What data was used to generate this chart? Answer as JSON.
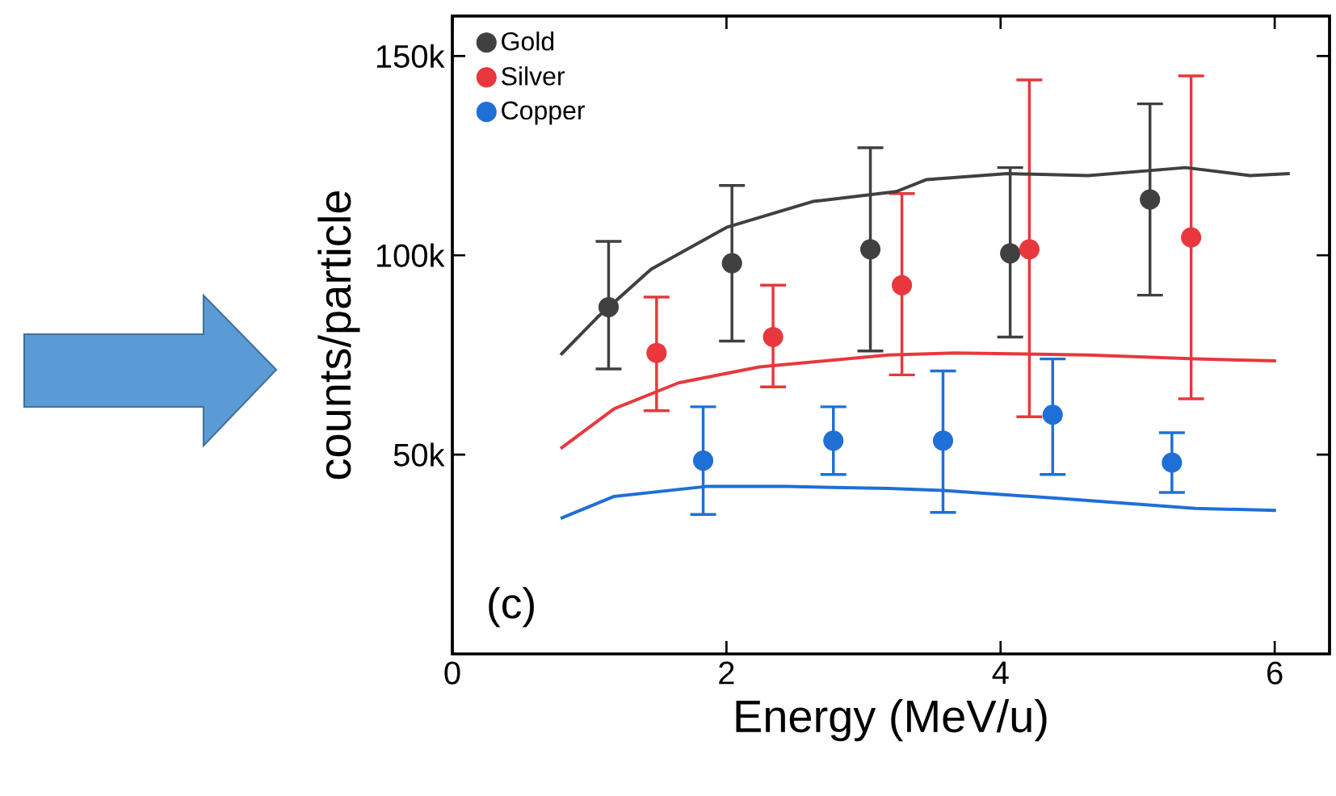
{
  "chart_data": {
    "type": "scatter",
    "xlabel": "Energy (MeV/u)",
    "ylabel": "counts/particle",
    "xlim": [
      0,
      6.4
    ],
    "xticks": [
      0,
      2,
      4,
      6
    ],
    "ylim": [
      0,
      160000
    ],
    "yticks": [
      {
        "value": 50000,
        "label": "50k"
      },
      {
        "value": 100000,
        "label": "100k"
      },
      {
        "value": 150000,
        "label": "150k"
      }
    ],
    "legend": "top left",
    "marker": "circle",
    "grid": false,
    "annotations": [
      "(c)"
    ],
    "series": [
      {
        "name": "Gold",
        "color": "#404040",
        "x": [
          1.14,
          2.04,
          3.05,
          4.07,
          5.09
        ],
        "values": [
          87000,
          98000,
          101500,
          100500,
          114000
        ],
        "errors": [
          [
            71500,
            103500
          ],
          [
            78500,
            117500
          ],
          [
            76000,
            127000
          ],
          [
            79500,
            122000
          ],
          [
            90000,
            138000
          ]
        ]
      },
      {
        "name": "Silver",
        "color": "#e8383d",
        "x": [
          1.49,
          2.34,
          3.28,
          4.21,
          5.39
        ],
        "values": [
          75500,
          79500,
          92500,
          101500,
          104500
        ],
        "errors": [
          [
            61000,
            89500
          ],
          [
            67000,
            92500
          ],
          [
            70000,
            115500
          ],
          [
            59500,
            144000
          ],
          [
            64000,
            145000
          ]
        ]
      },
      {
        "name": "Copper",
        "color": "#1f6fd6",
        "x": [
          1.83,
          2.78,
          3.58,
          4.38,
          5.25
        ],
        "values": [
          48500,
          53500,
          53500,
          60000,
          48000
        ],
        "errors": [
          [
            35000,
            62000
          ],
          [
            45000,
            62000
          ],
          [
            35500,
            71000
          ],
          [
            45000,
            74000
          ],
          [
            40500,
            55500
          ]
        ]
      },
      {
        "type": "line",
        "marker": "none",
        "color": "#404040",
        "x": [
          0.79,
          1.06,
          1.45,
          2.0,
          2.63,
          3.24,
          3.46,
          4.05,
          4.64,
          5.35,
          5.82,
          6.11
        ],
        "values": [
          75000,
          84500,
          96500,
          107000,
          113500,
          116000,
          119000,
          120500,
          120000,
          122000,
          120000,
          120500
        ]
      },
      {
        "type": "line",
        "marker": "none",
        "color": "#e8383d",
        "x": [
          0.79,
          1.18,
          1.65,
          2.24,
          3.18,
          3.66,
          4.64,
          5.42,
          6.01
        ],
        "values": [
          51500,
          61500,
          68000,
          72000,
          75000,
          75500,
          75000,
          74000,
          73500
        ]
      },
      {
        "type": "line",
        "marker": "none",
        "color": "#1f6fd6",
        "x": [
          0.79,
          1.18,
          1.85,
          2.44,
          3.18,
          3.58,
          4.44,
          5.42,
          6.01
        ],
        "values": [
          34000,
          39500,
          42000,
          42000,
          41500,
          41000,
          39000,
          36500,
          36000
        ]
      }
    ]
  }
}
